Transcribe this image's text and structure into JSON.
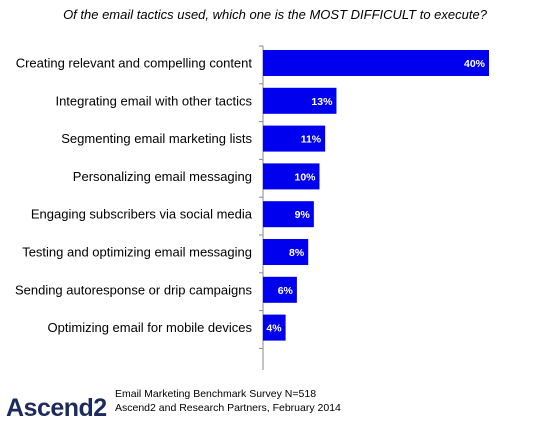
{
  "chart_data": {
    "type": "bar",
    "orientation": "horizontal",
    "title": "Of the email tactics used, which one is the MOST DIFFICULT to execute?",
    "categories": [
      "Creating relevant and compelling content",
      "Integrating email with other tactics",
      "Segmenting email marketing lists",
      "Personalizing email messaging",
      "Engaging subscribers via social media",
      "Testing and optimizing email messaging",
      "Sending autoresponse or drip campaigns",
      "Optimizing email for mobile devices"
    ],
    "values": [
      40,
      13,
      11,
      10,
      9,
      8,
      6,
      4
    ],
    "data_labels": [
      "40%",
      "13%",
      "11%",
      "10%",
      "9%",
      "8%",
      "6%",
      "4%"
    ],
    "bar_color": "#0000ee",
    "label_color": "#ffffff",
    "xlim": [
      0,
      40
    ],
    "grid": false,
    "legend": "none"
  },
  "footer": {
    "logo": "Ascend2",
    "source_line1": "Email Marketing Benchmark Survey N=518",
    "source_line2": "Ascend2 and Research Partners, February 2014"
  }
}
